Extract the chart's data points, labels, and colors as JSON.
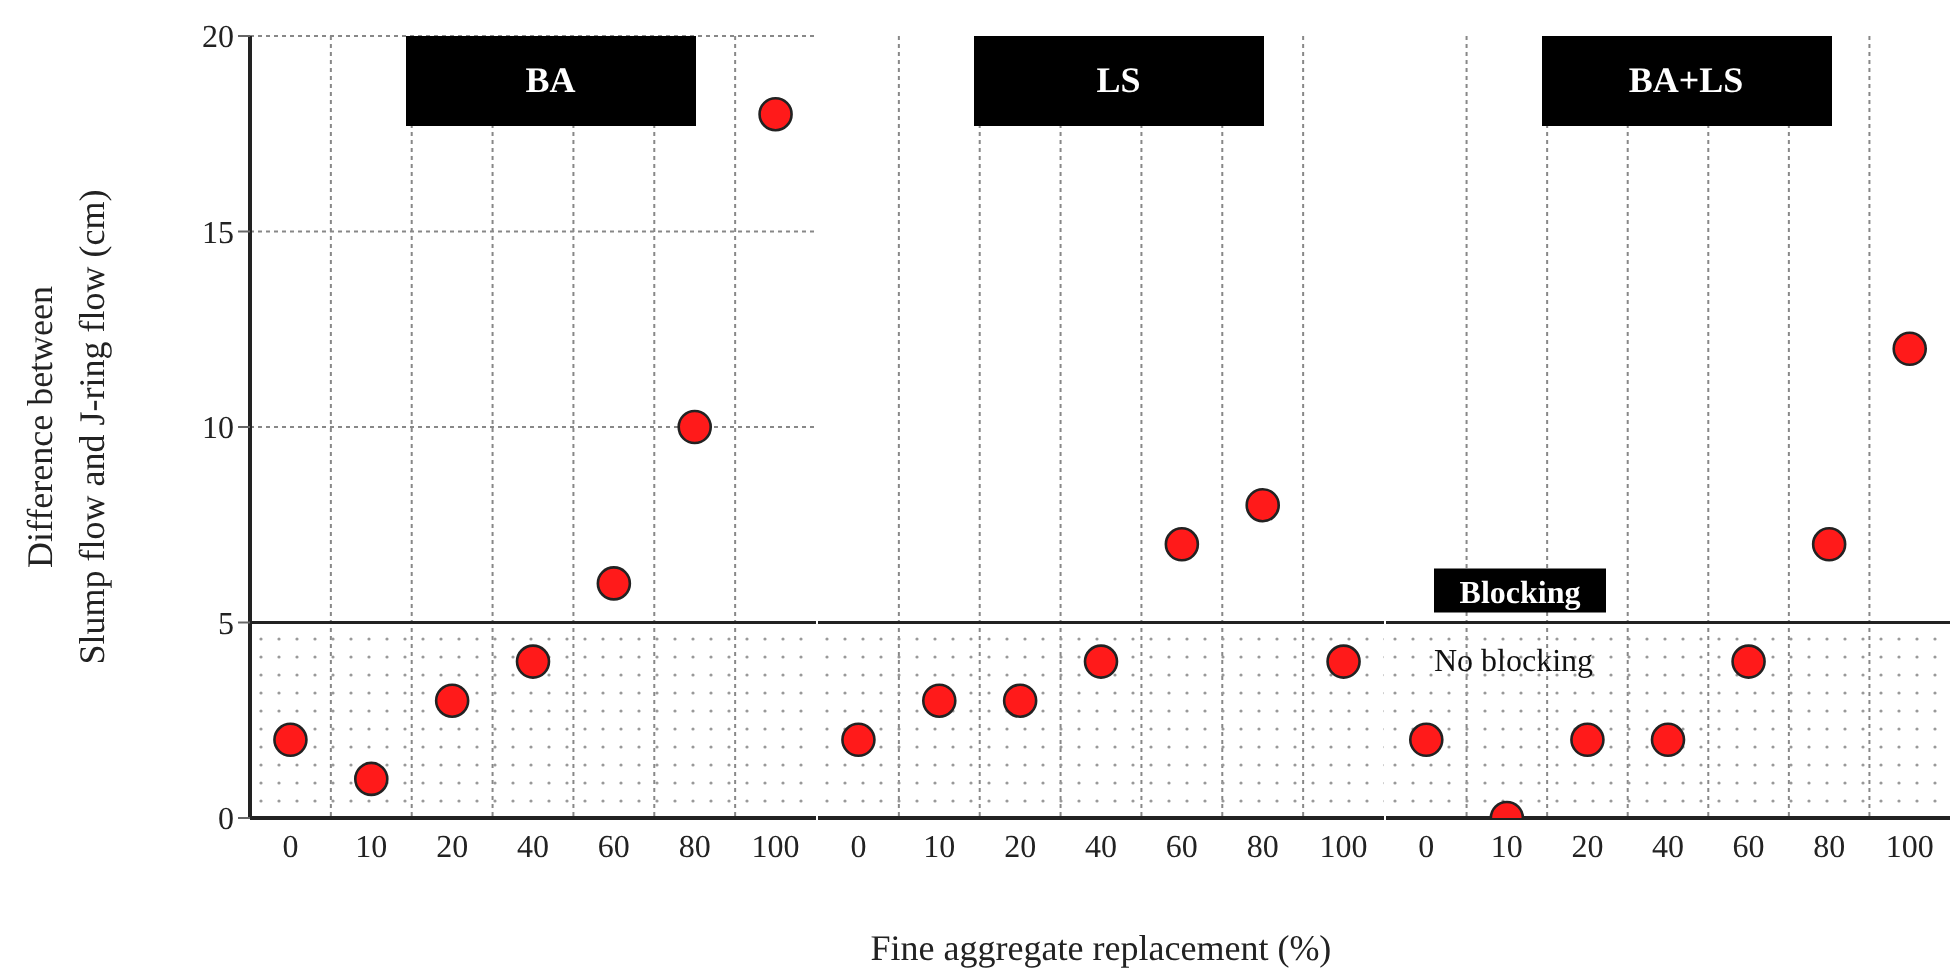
{
  "chart_data": [
    {
      "type": "scatter",
      "title": "BA",
      "ylabel": "Difference between\nSlump flow and J-ring flow (cm)",
      "categories": [
        "0",
        "10",
        "20",
        "40",
        "60",
        "80",
        "100"
      ],
      "values": [
        2,
        1,
        3,
        4,
        6,
        10,
        18
      ],
      "color": "#ff1a1a",
      "ylim": [
        0,
        20
      ],
      "yticks": [
        0,
        5,
        10,
        15,
        20
      ],
      "grid": true,
      "marker": "circle",
      "bands": [
        {
          "axis": "y",
          "from": 0,
          "to": 5
        }
      ],
      "ref_lines": [
        {
          "axis": "y",
          "value": 5
        }
      ]
    },
    {
      "type": "scatter",
      "title": "LS",
      "xlabel": "Fine aggregate replacement (%)",
      "categories": [
        "0",
        "10",
        "20",
        "40",
        "60",
        "80",
        "100"
      ],
      "values": [
        2,
        3,
        3,
        4,
        7,
        8,
        4
      ],
      "color": "#ff1a1a",
      "ylim": [
        0,
        20
      ],
      "yticks": [
        0,
        5,
        10,
        15,
        20
      ],
      "grid": true,
      "marker": "circle",
      "tick_labels": "x",
      "bands": [
        {
          "axis": "y",
          "from": 0,
          "to": 5
        }
      ],
      "ref_lines": [
        {
          "axis": "y",
          "value": 5
        }
      ]
    },
    {
      "type": "scatter",
      "title": "BA+LS",
      "categories": [
        "0",
        "10",
        "20",
        "40",
        "60",
        "80",
        "100"
      ],
      "values": [
        2,
        0,
        2,
        2,
        4,
        7,
        12
      ],
      "color": "#ff1a1a",
      "ylim": [
        0,
        20
      ],
      "yticks": [
        0,
        5,
        10,
        15,
        20
      ],
      "grid": true,
      "marker": "circle",
      "tick_labels": "x",
      "bands": [
        {
          "axis": "y",
          "from": 0,
          "to": 5,
          "label": "No blocking"
        }
      ],
      "ref_lines": [
        {
          "axis": "y",
          "value": 5,
          "label": "Blocking"
        }
      ]
    }
  ]
}
